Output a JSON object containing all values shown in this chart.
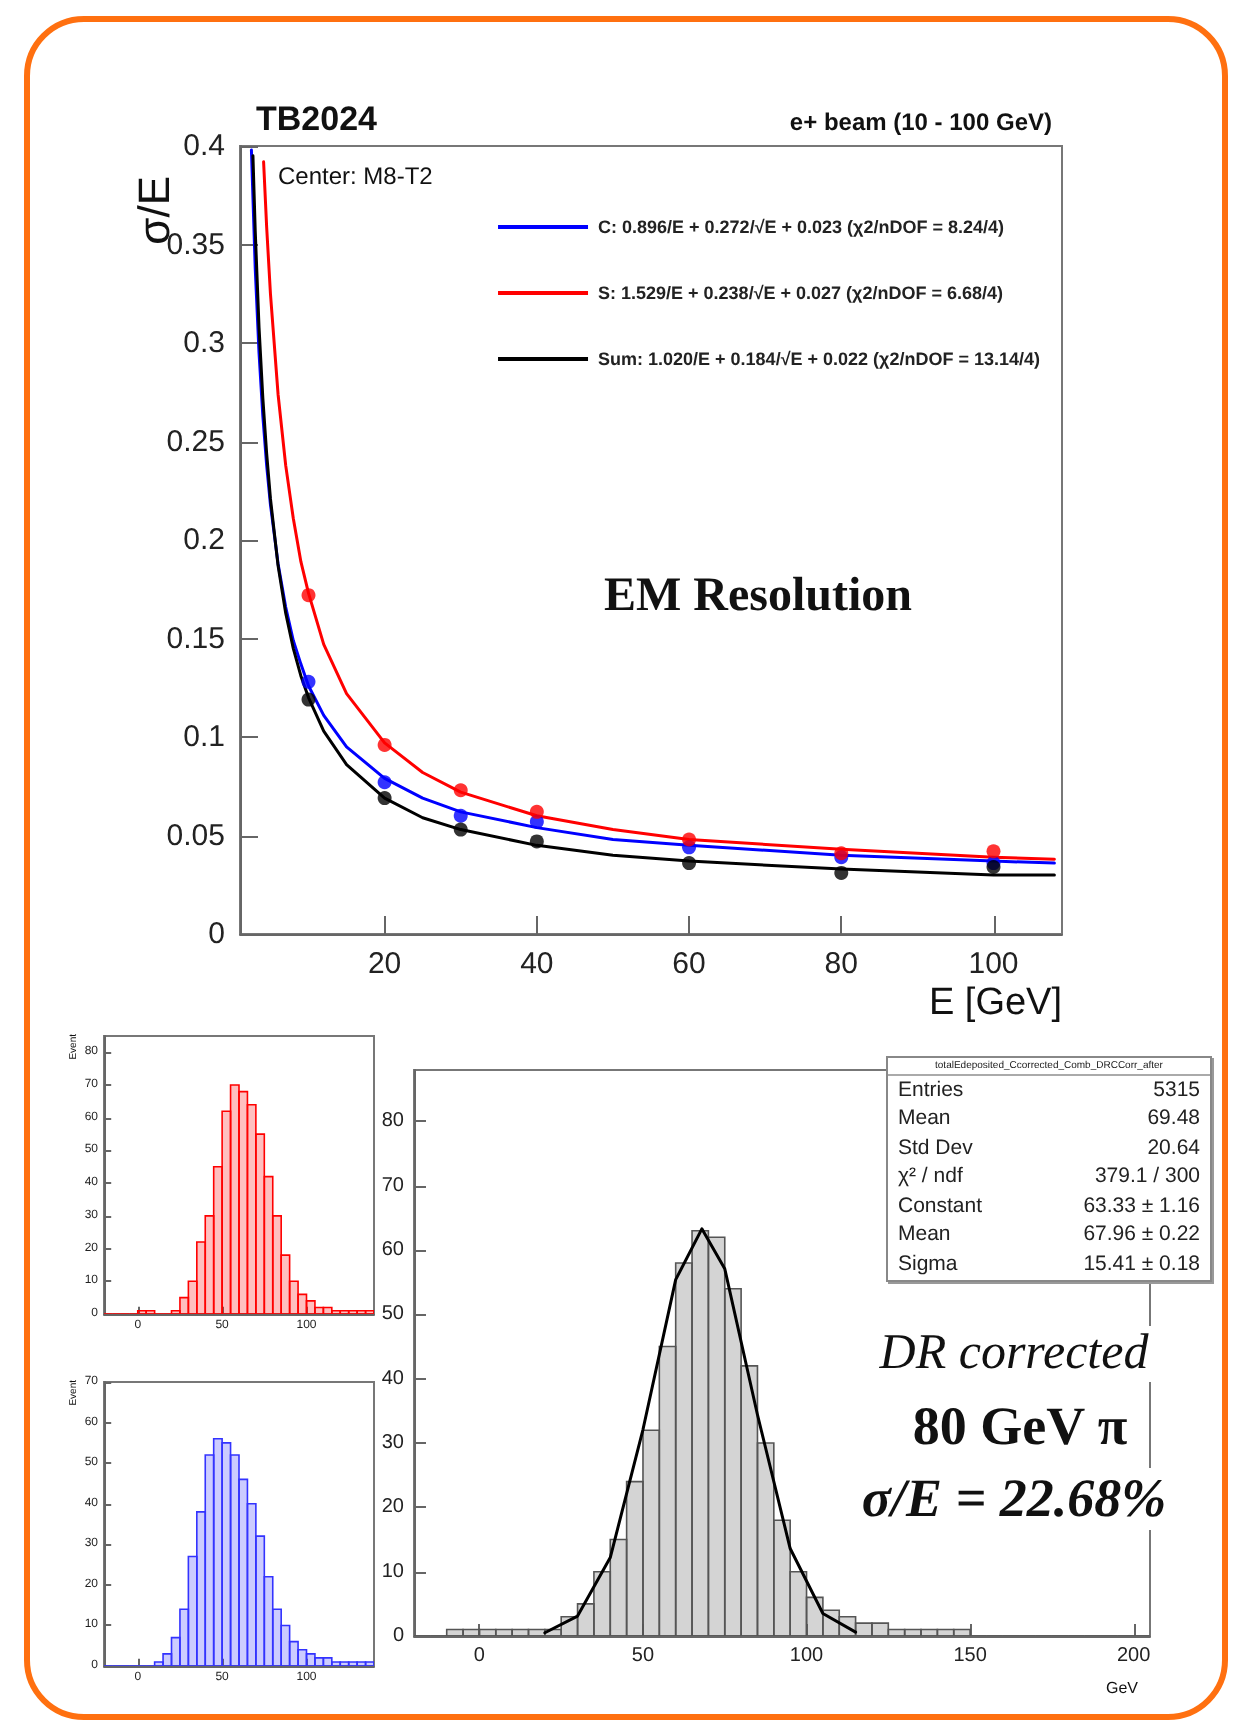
{
  "chart_data": [
    {
      "type": "scatter",
      "title": "TB2024",
      "subtitle": "e+ beam (10 - 100 GeV)",
      "xlabel": "E [GeV]",
      "ylabel": "σ/E",
      "annotations": [
        "Center: M8-T2",
        "EM Resolution"
      ],
      "xlim": [
        1,
        109
      ],
      "xticks": [
        20,
        40,
        60,
        80,
        100
      ],
      "ylim": [
        0,
        0.4
      ],
      "yticks": [
        0,
        0.05,
        0.1,
        0.15,
        0.2,
        0.25,
        0.3,
        0.35,
        0.4
      ],
      "legend": "top right",
      "series": [
        {
          "type": "line",
          "marker": "none",
          "name": "C: 0.896/E + 0.272/√E + 0.023 (χ2/nDOF = 8.24/4)",
          "color": "#0000ff",
          "x": [
            2.5,
            3,
            3.5,
            4,
            4.5,
            5,
            6,
            7,
            8,
            9,
            10,
            12,
            15,
            20,
            25,
            30,
            40,
            50,
            60,
            80,
            100,
            108
          ],
          "values": [
            0.398,
            0.338,
            0.295,
            0.263,
            0.238,
            0.218,
            0.188,
            0.166,
            0.149,
            0.137,
            0.126,
            0.111,
            0.095,
            0.079,
            0.069,
            0.062,
            0.054,
            0.048,
            0.045,
            0.04,
            0.037,
            0.036
          ]
        },
        {
          "type": "line",
          "marker": "none",
          "name": "S: 1.529/E + 0.238/√E + 0.027 (χ2/nDOF = 6.68/4)",
          "color": "#ff0000",
          "x": [
            4.1,
            4.5,
            5,
            6,
            7,
            8,
            9,
            10,
            12,
            15,
            20,
            25,
            30,
            40,
            50,
            60,
            80,
            100,
            108
          ],
          "values": [
            0.392,
            0.359,
            0.325,
            0.274,
            0.238,
            0.211,
            0.189,
            0.173,
            0.147,
            0.122,
            0.097,
            0.082,
            0.072,
            0.06,
            0.053,
            0.048,
            0.043,
            0.039,
            0.038
          ]
        },
        {
          "type": "line",
          "marker": "none",
          "name": "Sum: 1.020/E + 0.184/√E + 0.022 (χ2/nDOF = 13.14/4)",
          "color": "#000000",
          "x": [
            2.7,
            3,
            3.5,
            4,
            4.5,
            5,
            6,
            7,
            8,
            9,
            10,
            12,
            15,
            20,
            25,
            30,
            40,
            50,
            60,
            80,
            100,
            108
          ],
          "values": [
            0.395,
            0.357,
            0.308,
            0.272,
            0.244,
            0.221,
            0.187,
            0.163,
            0.145,
            0.131,
            0.12,
            0.103,
            0.086,
            0.069,
            0.059,
            0.053,
            0.045,
            0.04,
            0.037,
            0.033,
            0.03,
            0.03
          ]
        },
        {
          "marker": "circle",
          "color": "#0000ff",
          "x": [
            10,
            20,
            30,
            40,
            60,
            80,
            100
          ],
          "values": [
            0.128,
            0.077,
            0.06,
            0.057,
            0.044,
            0.039,
            0.036
          ]
        },
        {
          "marker": "circle",
          "color": "#ff0000",
          "x": [
            10,
            20,
            30,
            40,
            60,
            80,
            100
          ],
          "values": [
            0.172,
            0.096,
            0.073,
            0.062,
            0.048,
            0.041,
            0.042
          ]
        },
        {
          "marker": "circle",
          "color": "#000000",
          "x": [
            10,
            20,
            30,
            40,
            60,
            80,
            100
          ],
          "values": [
            0.119,
            0.069,
            0.053,
            0.047,
            0.036,
            0.031,
            0.034
          ]
        }
      ]
    },
    {
      "type": "histogram",
      "ylabel": "Event",
      "xlim": [
        -20,
        140
      ],
      "xticks": [
        0,
        50,
        100
      ],
      "ylim": [
        0,
        85
      ],
      "yticks": [
        0,
        10,
        20,
        30,
        40,
        50,
        60,
        70,
        80
      ],
      "color": "#ff0000",
      "bins": [
        -20,
        -15,
        -10,
        -5,
        0,
        5,
        10,
        15,
        20,
        25,
        30,
        35,
        40,
        45,
        50,
        55,
        60,
        65,
        70,
        75,
        80,
        85,
        90,
        95,
        100,
        105,
        110,
        115,
        120,
        125,
        130,
        135,
        140
      ],
      "values": [
        0,
        0,
        0,
        0,
        1,
        1,
        0,
        0,
        1,
        5,
        10,
        22,
        30,
        45,
        62,
        70,
        68,
        64,
        55,
        42,
        30,
        18,
        10,
        6,
        4,
        2,
        2,
        1,
        1,
        1,
        1,
        1
      ]
    },
    {
      "type": "histogram",
      "ylabel": "Event",
      "xlim": [
        -20,
        140
      ],
      "xticks": [
        0,
        50,
        100
      ],
      "ylim": [
        0,
        70
      ],
      "yticks": [
        0,
        10,
        20,
        30,
        40,
        50,
        60,
        70
      ],
      "color": "#3333ff",
      "bins": [
        -20,
        -15,
        -10,
        -5,
        0,
        5,
        10,
        15,
        20,
        25,
        30,
        35,
        40,
        45,
        50,
        55,
        60,
        65,
        70,
        75,
        80,
        85,
        90,
        95,
        100,
        105,
        110,
        115,
        120,
        125,
        130,
        135,
        140
      ],
      "values": [
        0,
        0,
        0,
        0,
        0,
        0,
        1,
        3,
        7,
        14,
        27,
        38,
        52,
        56,
        55,
        52,
        46,
        40,
        32,
        22,
        14,
        10,
        6,
        4,
        3,
        2,
        2,
        1,
        1,
        1,
        1,
        1
      ]
    },
    {
      "type": "histogram",
      "xlabel": "GeV",
      "xlim": [
        -20,
        205
      ],
      "xticks": [
        0,
        50,
        100,
        150,
        200
      ],
      "ylim": [
        0,
        88
      ],
      "yticks": [
        0,
        10,
        20,
        30,
        40,
        50,
        60,
        70,
        80
      ],
      "annotations": [
        "totalEdeposited_Ccorrected_Comb_DRCCorr_after",
        "Entries  5315",
        "Mean  69.48",
        "Std Dev  20.64",
        "χ² / ndf  379.1 / 300",
        "Constant  63.33 ± 1.16",
        "Mean  67.96 ± 0.22",
        "Sigma  15.41 ± 0.18",
        "DR corrected",
        "80 GeV π",
        "σ/E = 22.68%"
      ],
      "series": [
        {
          "color": "#555555",
          "bins": [
            -20,
            -15,
            -10,
            -5,
            0,
            5,
            10,
            15,
            20,
            25,
            30,
            35,
            40,
            45,
            50,
            55,
            60,
            65,
            70,
            75,
            80,
            85,
            90,
            95,
            100,
            105,
            110,
            115,
            120,
            125,
            130,
            135,
            140,
            145,
            150,
            155,
            160,
            165,
            170,
            175,
            180,
            185,
            190,
            195,
            200,
            205
          ],
          "values": [
            0,
            0,
            1,
            1,
            1,
            1,
            1,
            1,
            1,
            3,
            5,
            10,
            15,
            24,
            32,
            45,
            58,
            63,
            62,
            54,
            42,
            30,
            18,
            10,
            6,
            4,
            3,
            2,
            2,
            1,
            1,
            1,
            1,
            1,
            0,
            0,
            0,
            0,
            0,
            0,
            0,
            0,
            0,
            0,
            0
          ]
        },
        {
          "type": "line",
          "color": "#000000",
          "x": [
            20,
            30,
            40,
            50,
            60,
            68,
            75,
            85,
            95,
            105,
            115
          ],
          "values": [
            0.5,
            3.1,
            12.2,
            32.1,
            55.4,
            63.3,
            57.1,
            34.4,
            13.6,
            3.5,
            0.6
          ]
        }
      ]
    }
  ]
}
